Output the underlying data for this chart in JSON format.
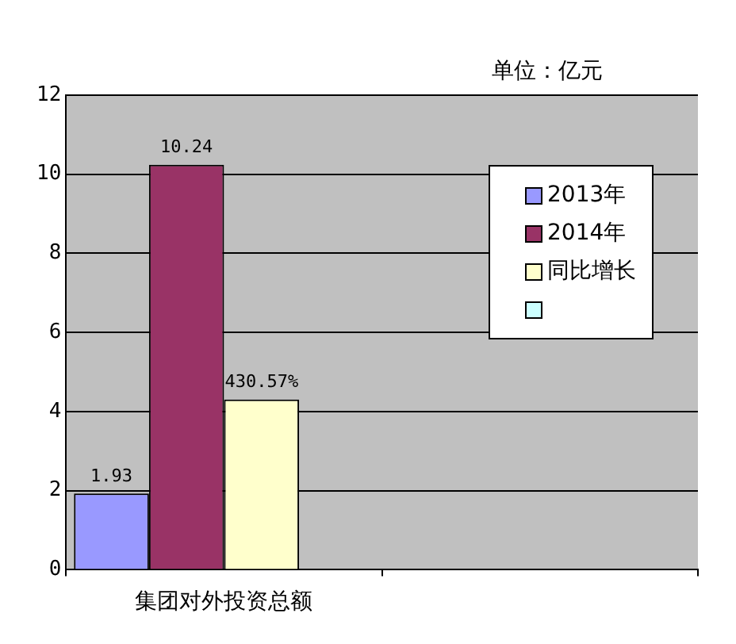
{
  "chart_data": {
    "type": "bar",
    "categories": [
      "集团对外投资总额",
      null
    ],
    "series": [
      {
        "name": "2013年",
        "color": "#9999ff",
        "values": [
          1.93,
          null
        ],
        "value_labels": [
          "1.93",
          null
        ]
      },
      {
        "name": "2014年",
        "color": "#993366",
        "values": [
          10.24,
          null
        ],
        "value_labels": [
          "10.24",
          null
        ]
      },
      {
        "name": "同比增长",
        "color": "#ffffcc",
        "values": [
          4.3057,
          null
        ],
        "value_labels": [
          "430.57%",
          null
        ]
      },
      {
        "color": "#ccffff",
        "values": [
          null,
          null
        ]
      }
    ],
    "ylim": [
      0,
      12
    ],
    "yticks": [
      0,
      2,
      4,
      6,
      8,
      10,
      12
    ],
    "grid": "y",
    "legend": "top right",
    "annotations": [
      "单位：亿元"
    ]
  }
}
